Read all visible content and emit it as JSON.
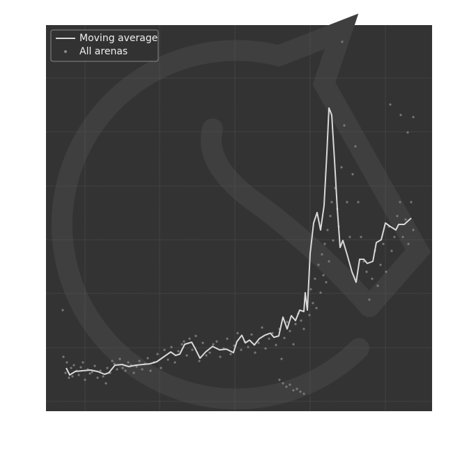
{
  "chart_data": {
    "type": "line",
    "xlim": [
      0,
      554
    ],
    "ylim": [
      0,
      554
    ],
    "xticks": [
      56,
      163,
      271,
      379,
      487
    ],
    "yticks": [
      14,
      91,
      169,
      246,
      323,
      401,
      478
    ],
    "grid": true,
    "legend": "upper left",
    "series": [
      {
        "name": "Moving average",
        "color": "#d9d9d9",
        "kind": "line",
        "x": [
          29,
          34,
          42,
          52,
          64,
          74,
          84,
          90,
          99,
          109,
          119,
          129,
          139,
          149,
          159,
          169,
          179,
          186,
          192,
          199,
          209,
          214,
          221,
          229,
          239,
          249,
          259,
          269,
          274,
          281,
          286,
          292,
          299,
          306,
          314,
          322,
          327,
          334,
          340,
          346,
          352,
          358,
          364,
          370,
          372,
          375,
          379,
          384,
          389,
          394,
          399,
          403,
          406,
          410,
          414,
          418,
          422,
          426,
          432,
          439,
          445,
          450,
          456,
          461,
          469,
          474,
          481,
          487,
          494,
          502,
          506,
          514,
          524
        ],
        "values": [
          62,
          52,
          57,
          58,
          59,
          57,
          53,
          55,
          66,
          67,
          64,
          66,
          67,
          68,
          71,
          78,
          85,
          80,
          82,
          96,
          99,
          90,
          76,
          85,
          93,
          88,
          89,
          84,
          100,
          109,
          98,
          102,
          95,
          104,
          109,
          112,
          106,
          108,
          135,
          118,
          137,
          130,
          145,
          143,
          170,
          145,
          226,
          270,
          285,
          260,
          295,
          370,
          435,
          425,
          360,
          290,
          235,
          245,
          225,
          200,
          185,
          218,
          218,
          212,
          215,
          242,
          246,
          270,
          265,
          260,
          268,
          268,
          277
        ]
      },
      {
        "name": "All arenas",
        "color": "#8a8a8a",
        "kind": "scatter",
        "x": [
          25,
          28,
          30,
          33,
          36,
          38,
          40,
          44,
          47,
          50,
          53,
          56,
          60,
          63,
          66,
          70,
          74,
          78,
          82,
          86,
          88,
          92,
          95,
          98,
          102,
          106,
          110,
          114,
          118,
          122,
          126,
          130,
          134,
          138,
          142,
          146,
          150,
          155,
          160,
          165,
          170,
          175,
          180,
          185,
          190,
          195,
          198,
          202,
          206,
          210,
          215,
          220,
          225,
          230,
          235,
          240,
          245,
          250,
          255,
          260,
          265,
          270,
          275,
          280,
          285,
          290,
          295,
          300,
          305,
          310,
          315,
          320,
          325,
          330,
          335,
          338,
          342,
          346,
          350,
          355,
          358,
          362,
          366,
          370,
          372,
          375,
          378,
          380,
          383,
          386,
          388,
          391,
          394,
          396,
          398,
          400,
          402,
          404,
          406,
          408,
          410,
          412,
          415,
          418,
          420,
          424,
          428,
          432,
          436,
          440,
          444,
          448,
          452,
          456,
          460,
          464,
          468,
          472,
          476,
          480,
          484,
          488,
          492,
          496,
          500,
          504,
          508,
          512,
          516,
          520,
          524,
          527,
          24,
          335,
          340,
          345,
          350,
          355,
          360,
          365,
          370,
          494,
          509,
          527,
          519,
          425
        ],
        "values": [
          78,
          55,
          70,
          48,
          62,
          50,
          66,
          58,
          52,
          63,
          70,
          45,
          60,
          54,
          56,
          65,
          48,
          58,
          50,
          40,
          62,
          55,
          72,
          68,
          60,
          75,
          62,
          58,
          70,
          66,
          55,
          64,
          72,
          60,
          68,
          76,
          58,
          70,
          82,
          62,
          88,
          74,
          92,
          70,
          86,
          96,
          100,
          80,
          104,
          88,
          108,
          72,
          98,
          80,
          84,
          96,
          100,
          78,
          90,
          104,
          82,
          94,
          112,
          88,
          100,
          92,
          110,
          84,
          98,
          120,
          90,
          104,
          112,
          95,
          118,
          75,
          105,
          128,
          115,
          96,
          125,
          140,
          130,
          118,
          160,
          150,
          138,
          175,
          155,
          190,
          148,
          210,
          170,
          225,
          195,
          240,
          185,
          260,
          215,
          280,
          300,
          245,
          320,
          290,
          265,
          350,
          410,
          300,
          250,
          340,
          380,
          300,
          250,
          215,
          200,
          160,
          190,
          230,
          180,
          210,
          240,
          200,
          265,
          230,
          250,
          280,
          300,
          250,
          275,
          240,
          300,
          260,
          145,
          45,
          40,
          35,
          38,
          30,
          32,
          28,
          25,
          440,
          425,
          422,
          400,
          530
        ]
      }
    ]
  }
}
